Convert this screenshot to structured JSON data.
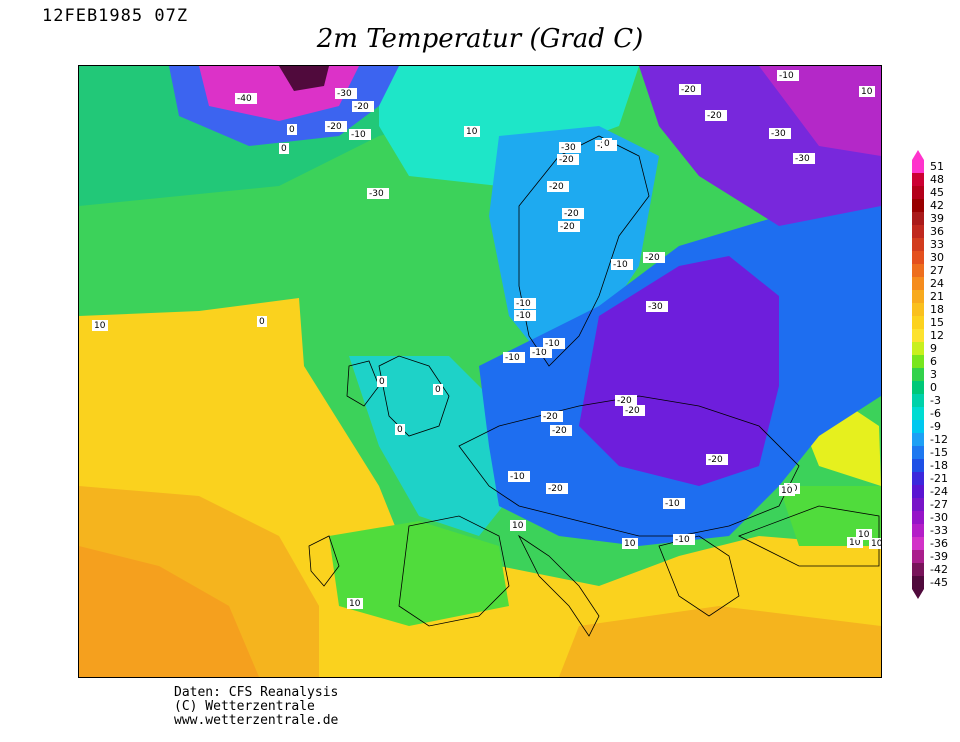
{
  "header": {
    "timestamp": "12FEB1985 07Z",
    "title": "2m Temperatur (Grad C)"
  },
  "legend": {
    "values": [
      "51",
      "48",
      "45",
      "42",
      "39",
      "36",
      "33",
      "30",
      "27",
      "24",
      "21",
      "18",
      "15",
      "12",
      "9",
      "6",
      "3",
      "0",
      "-3",
      "-6",
      "-9",
      "-12",
      "-15",
      "-18",
      "-21",
      "-24",
      "-27",
      "-30",
      "-33",
      "-36",
      "-39",
      "-42",
      "-45"
    ],
    "colors": [
      "#ff33cc",
      "#cc0033",
      "#b3001a",
      "#990000",
      "#aa1a1a",
      "#c0281e",
      "#d23c1e",
      "#e4501e",
      "#ee6e1e",
      "#f58c1e",
      "#f8aa1e",
      "#fac01e",
      "#fcd21e",
      "#fde22e",
      "#c8f01e",
      "#78e61e",
      "#32d24b",
      "#00c878",
      "#00d2aa",
      "#00dcd2",
      "#00c8f0",
      "#1ea0f5",
      "#1e78f0",
      "#1e50e6",
      "#3c28dc",
      "#5a14d2",
      "#7814c8",
      "#9614c8",
      "#b41ec8",
      "#d232c8",
      "#aa1e8c",
      "#78145a",
      "#500a3c"
    ]
  },
  "map": {
    "contour_labels": [
      "-40",
      "-30",
      "-20",
      "-20",
      "-10",
      "-30",
      "-20",
      "0",
      "0",
      "10",
      "-30",
      "-20",
      "-20",
      "-10",
      "-30",
      "-30",
      "-20",
      "-20",
      "-20",
      "-20",
      "-10",
      "-10",
      "-20",
      "-20",
      "-20",
      "-30",
      "-10",
      "-10",
      "-10",
      "-10",
      "-20",
      "-20",
      "-20",
      "-10",
      "-20",
      "-10",
      "-10",
      "10",
      "10",
      "0",
      "0",
      "0",
      "0",
      "0",
      "10",
      "10",
      "10",
      "10",
      "10",
      "10",
      "10",
      "10"
    ],
    "colors": {
      "sea_green": "#32c864",
      "warm_yellow": "#fad21e",
      "orange": "#f5aa1e",
      "cyan": "#1edcc8",
      "blue": "#1e6ef0",
      "purple": "#6414d2",
      "magenta": "#dc32c8",
      "border": "#000000"
    }
  },
  "footer": {
    "line1": "Daten: CFS Reanalysis",
    "line2": "(C) Wetterzentrale",
    "line3": "www.wetterzentrale.de"
  }
}
